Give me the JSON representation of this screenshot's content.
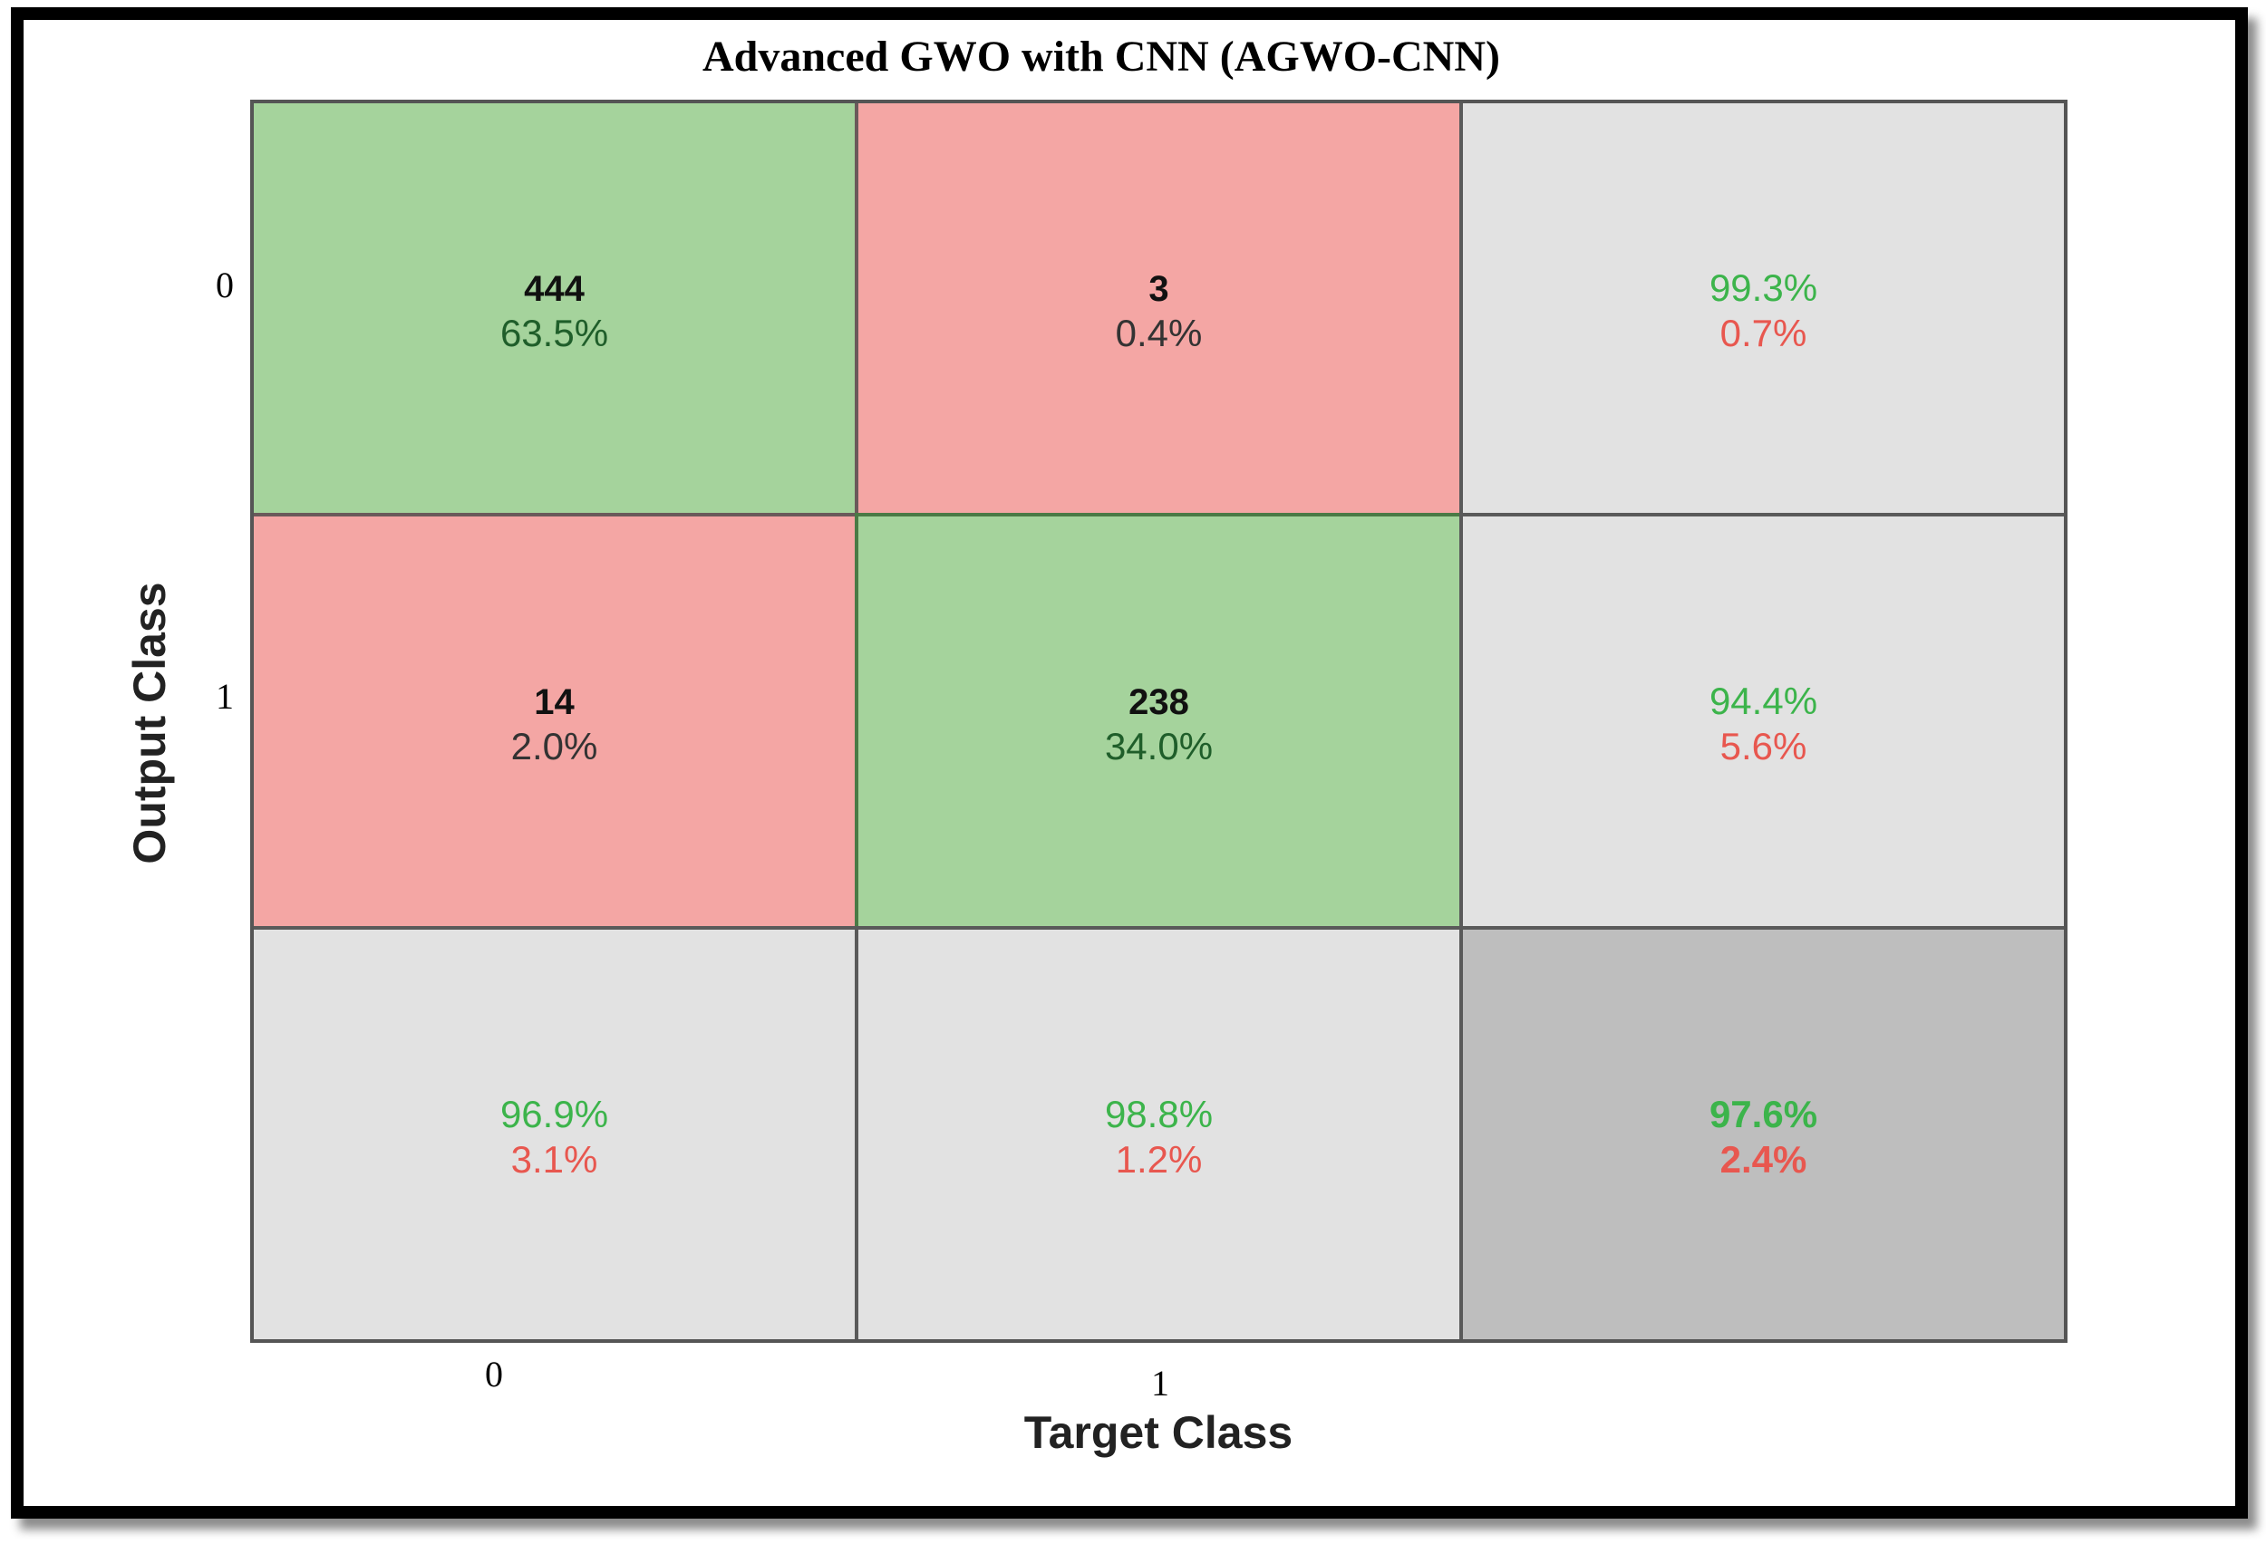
{
  "chart_data": {
    "type": "heatmap",
    "title": "Advanced GWO with CNN (AGWO-CNN)",
    "xlabel": "Target Class",
    "ylabel": "Output Class",
    "x_tick_labels": [
      "0",
      "1"
    ],
    "y_tick_labels": [
      "0",
      "1"
    ],
    "colors": {
      "correct": "#a5d39c",
      "incorrect": "#f4a6a4",
      "summary": "#e2e2e2",
      "overall": "#bebebe",
      "good_text": "#3cb44b",
      "bad_text": "#e8574f",
      "cell_text_dark": "#1f5e2a"
    },
    "cells": [
      [
        {
          "count": "444",
          "percent": "63.5%",
          "kind": "correct"
        },
        {
          "count": "3",
          "percent": "0.4%",
          "kind": "incorrect"
        },
        {
          "good": "99.3%",
          "bad": "0.7%",
          "kind": "summary"
        }
      ],
      [
        {
          "count": "14",
          "percent": "2.0%",
          "kind": "incorrect"
        },
        {
          "count": "238",
          "percent": "34.0%",
          "kind": "correct"
        },
        {
          "good": "94.4%",
          "bad": "5.6%",
          "kind": "summary"
        }
      ],
      [
        {
          "good": "96.9%",
          "bad": "3.1%",
          "kind": "summary"
        },
        {
          "good": "98.8%",
          "bad": "1.2%",
          "kind": "summary"
        },
        {
          "good": "97.6%",
          "bad": "2.4%",
          "kind": "overall"
        }
      ]
    ]
  }
}
